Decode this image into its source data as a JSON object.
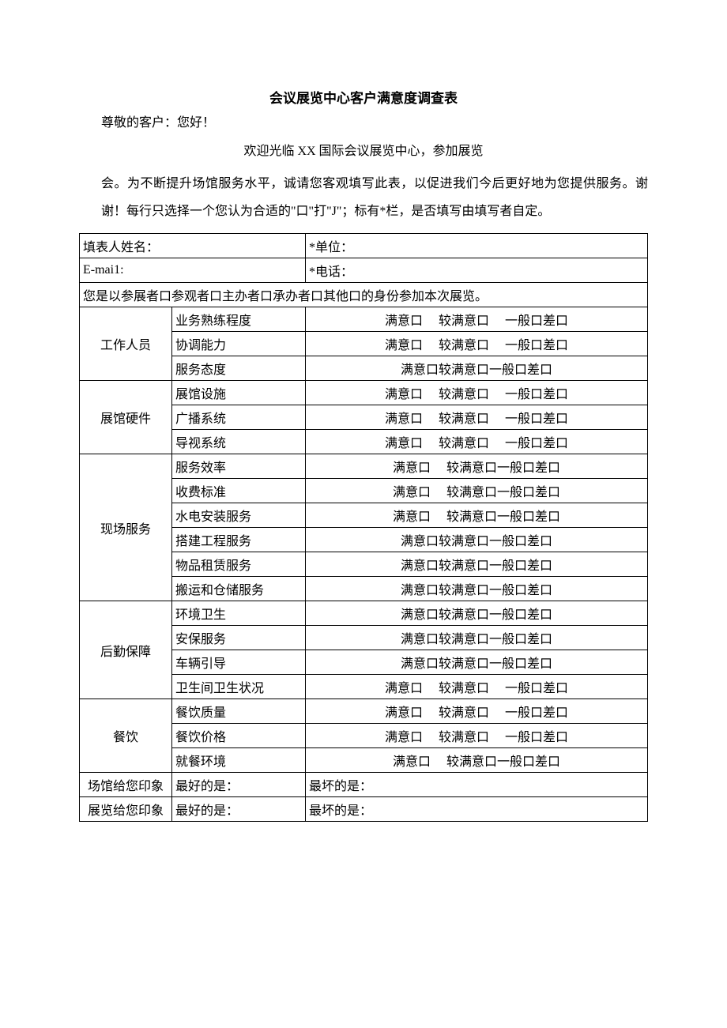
{
  "title": "会议展览中心客户满意度调查表",
  "greeting": "尊敬的客户：您好！",
  "welcome": "欢迎光临 XX 国际会议展览中心，参加展览",
  "paragraph": "会。为不断提升场馆服务水平，诚请您客观填写此表，以促进我们今后更好地为您提供服务。谢谢！每行只选择一个您认为合适的\"口\"打\"J\"；标有*栏，是否填写由填写者自定。",
  "header": {
    "name_label": "填表人姓名：",
    "unit_label": "*单位：",
    "email_label": "E-mai1:",
    "phone_label": "*电话：",
    "identity_row": "您是以参展者口参观者口主办者口承办者口其他口的身份参加本次展览。"
  },
  "options": {
    "spaced": "满意口　 较满意口　 一般口差口",
    "tight": "满意口较满意口一般口差口",
    "mid": "满意口　 较满意口一般口差口"
  },
  "sections": [
    {
      "cat": "工作人员",
      "items": [
        {
          "label": "业务熟练程度",
          "opt": "spaced"
        },
        {
          "label": "协调能力",
          "opt": "spaced"
        },
        {
          "label": "服务态度",
          "opt": "tight"
        }
      ]
    },
    {
      "cat": "展馆硬件",
      "items": [
        {
          "label": "展馆设施",
          "opt": "spaced"
        },
        {
          "label": "广播系统",
          "opt": "spaced"
        },
        {
          "label": "导视系统",
          "opt": "spaced"
        }
      ]
    },
    {
      "cat": "现场服务",
      "items": [
        {
          "label": "服务效率",
          "opt": "mid"
        },
        {
          "label": "收费标准",
          "opt": "mid"
        },
        {
          "label": "水电安装服务",
          "opt": "mid"
        },
        {
          "label": "搭建工程服务",
          "opt": "tight"
        },
        {
          "label": "物品租赁服务",
          "opt": "tight"
        },
        {
          "label": "搬运和仓储服务",
          "opt": "tight"
        }
      ]
    },
    {
      "cat": "后勤保障",
      "items": [
        {
          "label": "环境卫生",
          "opt": "tight"
        },
        {
          "label": "安保服务",
          "opt": "tight"
        },
        {
          "label": "车辆引导",
          "opt": "tight"
        },
        {
          "label": "卫生间卫生状况",
          "opt": "spaced"
        }
      ]
    },
    {
      "cat": "餐饮",
      "items": [
        {
          "label": "餐饮质量",
          "opt": "spaced"
        },
        {
          "label": "餐饮价格",
          "opt": "spaced"
        },
        {
          "label": "就餐环境",
          "opt": "mid"
        }
      ]
    }
  ],
  "impressions": {
    "venue_label": "场馆给您印象",
    "exhibit_label": "展览给您印象",
    "best_label": "最好的是：",
    "worst_label": "最坏的是："
  }
}
